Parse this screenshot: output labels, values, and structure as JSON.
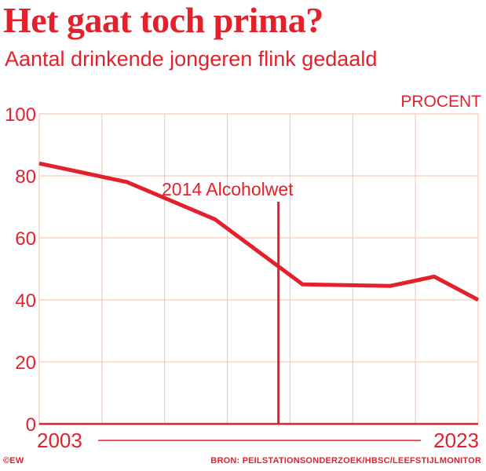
{
  "title": "Het gaat toch prima?",
  "subtitle": "Aantal drinkende jongeren flink gedaald",
  "colors": {
    "accent": "#e3212d",
    "grid": "#f4c1a8",
    "background": "#ffffff"
  },
  "footer": {
    "copyright": "©EW",
    "source": "BRON: PEILSTATIONSONDERZOEK/HBSC/LEEFSTIJLMONITOR"
  },
  "chart_data": {
    "type": "line",
    "unit_label": "PROCENT",
    "x": [
      2003,
      2007,
      2011,
      2015,
      2019,
      2021,
      2023
    ],
    "x_range": [
      2003,
      2023
    ],
    "x_tick_labels": [
      "2003",
      "2023"
    ],
    "ylim": [
      0,
      100
    ],
    "y_ticks": [
      0,
      20,
      40,
      60,
      80,
      100
    ],
    "grid": true,
    "series": [
      {
        "values": [
          84,
          78,
          66,
          45,
          44.5,
          47.5,
          40
        ]
      }
    ],
    "annotation": {
      "x": 2013.9,
      "label": "2014 Alcoholwet"
    }
  }
}
